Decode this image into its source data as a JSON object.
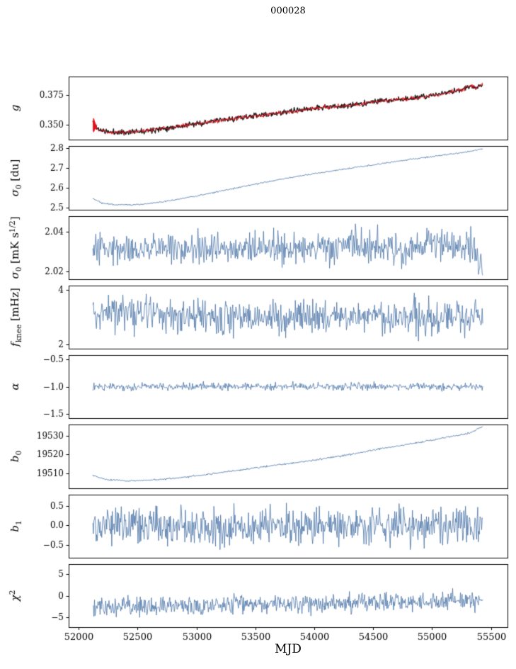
{
  "chart_data": {
    "type": "line",
    "title": "000028",
    "xlabel": "MJD",
    "xlim": [
      51915,
      55640
    ],
    "xticks": [
      {
        "v": 52000,
        "label": "52000"
      },
      {
        "v": 52500,
        "label": "52500"
      },
      {
        "v": 53000,
        "label": "53000"
      },
      {
        "v": 53500,
        "label": "53500"
      },
      {
        "v": 54000,
        "label": "54000"
      },
      {
        "v": 54500,
        "label": "54500"
      },
      {
        "v": 55000,
        "label": "55000"
      },
      {
        "v": 55500,
        "label": "55500"
      }
    ],
    "colors": {
      "line": "#4a74a6",
      "raw": "#1a1a1a",
      "fit": "#e8111a",
      "axis": "#000000"
    },
    "panels": [
      {
        "name": "g",
        "ylim": [
          0.338,
          0.39
        ],
        "yticks": [
          {
            "v": 0.35,
            "label": "0.350"
          },
          {
            "v": 0.375,
            "label": "0.375"
          }
        ],
        "ylabel": [
          {
            "t": "g",
            "it": 1
          }
        ],
        "series": [
          {
            "name": "g-raw",
            "color": "#1a1a1a",
            "lw": 1.4,
            "n": 700,
            "noise": 0.0011,
            "seed": 11,
            "trend": [
              [
                52120,
                0.353
              ],
              [
                52160,
                0.3468
              ],
              [
                52250,
                0.3442
              ],
              [
                52400,
                0.344
              ],
              [
                52600,
                0.3458
              ],
              [
                52850,
                0.349
              ],
              [
                53100,
                0.3525
              ],
              [
                53400,
                0.3565
              ],
              [
                53700,
                0.3598
              ],
              [
                54000,
                0.364
              ],
              [
                54150,
                0.3652
              ],
              [
                54300,
                0.366
              ],
              [
                54500,
                0.3692
              ],
              [
                54700,
                0.371
              ],
              [
                54900,
                0.3728
              ],
              [
                55100,
                0.3762
              ],
              [
                55250,
                0.379
              ],
              [
                55330,
                0.3826
              ],
              [
                55370,
                0.3806
              ],
              [
                55430,
                0.384
              ]
            ]
          },
          {
            "name": "g-fit",
            "color": "#e8111a",
            "lw": 0.9,
            "n": 700,
            "noise": 0.0008,
            "seed": 12,
            "trend": [
              [
                52120,
                0.353
              ],
              [
                52160,
                0.3468
              ],
              [
                52250,
                0.3442
              ],
              [
                52400,
                0.344
              ],
              [
                52600,
                0.3458
              ],
              [
                52850,
                0.349
              ],
              [
                53100,
                0.3525
              ],
              [
                53400,
                0.3565
              ],
              [
                53700,
                0.3598
              ],
              [
                54000,
                0.364
              ],
              [
                54150,
                0.3652
              ],
              [
                54300,
                0.366
              ],
              [
                54500,
                0.3692
              ],
              [
                54700,
                0.371
              ],
              [
                54900,
                0.3728
              ],
              [
                55100,
                0.3762
              ],
              [
                55250,
                0.379
              ],
              [
                55330,
                0.3826
              ],
              [
                55370,
                0.3806
              ],
              [
                55430,
                0.384
              ]
            ]
          },
          {
            "name": "g-start-spike",
            "color": "#e8111a",
            "lw": 0.9,
            "points": [
              [
                52122,
                0.353
              ],
              [
                52124,
                0.3448
              ],
              [
                52126,
                0.3556
              ],
              [
                52128,
                0.3442
              ],
              [
                52130,
                0.3548
              ],
              [
                52132,
                0.345
              ],
              [
                52134,
                0.3536
              ],
              [
                52136,
                0.3462
              ],
              [
                52138,
                0.3524
              ],
              [
                52140,
                0.3468
              ],
              [
                52142,
                0.3512
              ],
              [
                52144,
                0.3465
              ],
              [
                52146,
                0.35
              ],
              [
                52148,
                0.347
              ],
              [
                52150,
                0.3492
              ],
              [
                52152,
                0.3472
              ]
            ]
          }
        ]
      },
      {
        "name": "sigma0-du",
        "ylim": [
          2.488,
          2.812
        ],
        "yticks": [
          {
            "v": 2.5,
            "label": "2.5"
          },
          {
            "v": 2.6,
            "label": "2.6"
          },
          {
            "v": 2.7,
            "label": "2.7"
          },
          {
            "v": 2.8,
            "label": "2.8"
          }
        ],
        "ylabel": [
          {
            "t": "σ",
            "it": 1
          },
          {
            "t": "0",
            "sub": 1
          },
          {
            "t": " [du]"
          }
        ],
        "series": [
          {
            "name": "sigma0-du",
            "color": "#4a74a6",
            "lw": 0.9,
            "n": 600,
            "noise": 0.0018,
            "seed": 21,
            "trend": [
              [
                52120,
                2.545
              ],
              [
                52200,
                2.522
              ],
              [
                52320,
                2.5125
              ],
              [
                52500,
                2.5145
              ],
              [
                52700,
                2.527
              ],
              [
                53000,
                2.558
              ],
              [
                53300,
                2.594
              ],
              [
                53600,
                2.63
              ],
              [
                53900,
                2.662
              ],
              [
                54200,
                2.69
              ],
              [
                54500,
                2.716
              ],
              [
                54800,
                2.743
              ],
              [
                55050,
                2.762
              ],
              [
                55250,
                2.778
              ],
              [
                55430,
                2.797
              ]
            ]
          }
        ]
      },
      {
        "name": "sigma0-mK",
        "ylim": [
          2.016,
          2.048
        ],
        "yticks": [
          {
            "v": 2.02,
            "label": "2.02"
          },
          {
            "v": 2.04,
            "label": "2.04"
          }
        ],
        "ylabel": [
          {
            "t": "σ",
            "it": 1
          },
          {
            "t": "0",
            "sub": 1
          },
          {
            "t": " [mK s"
          },
          {
            "t": "1/2",
            "sup": 1
          },
          {
            "t": "]"
          }
        ],
        "series": [
          {
            "name": "sigma0-mK",
            "color": "#4a74a6",
            "lw": 0.8,
            "n": 650,
            "noise": 0.004,
            "seed": 31,
            "trend": [
              [
                52120,
                2.0295
              ],
              [
                52300,
                2.033
              ],
              [
                52500,
                2.031
              ],
              [
                52700,
                2.0335
              ],
              [
                52900,
                2.03
              ],
              [
                53200,
                2.031
              ],
              [
                53500,
                2.0325
              ],
              [
                53800,
                2.0305
              ],
              [
                54100,
                2.0315
              ],
              [
                54400,
                2.033
              ],
              [
                54700,
                2.032
              ],
              [
                55000,
                2.033
              ],
              [
                55200,
                2.034
              ],
              [
                55350,
                2.032
              ],
              [
                55430,
                2.023
              ]
            ]
          }
        ]
      },
      {
        "name": "fknee",
        "ylim": [
          1.85,
          4.15
        ],
        "yticks": [
          {
            "v": 2,
            "label": "2"
          },
          {
            "v": 4,
            "label": "4"
          }
        ],
        "ylabel": [
          {
            "t": "f",
            "it": 1
          },
          {
            "t": "knee",
            "sub": 1
          },
          {
            "t": " [mHz]"
          }
        ],
        "series": [
          {
            "name": "fknee",
            "color": "#4a74a6",
            "lw": 0.8,
            "n": 650,
            "noise": 0.32,
            "seed": 41,
            "trend": [
              [
                52120,
                3.15
              ],
              [
                52400,
                3.2
              ],
              [
                52700,
                3.05
              ],
              [
                53000,
                3.0
              ],
              [
                53300,
                2.95
              ],
              [
                53700,
                3.0
              ],
              [
                54100,
                3.0
              ],
              [
                54500,
                3.05
              ],
              [
                54900,
                3.0
              ],
              [
                55200,
                3.05
              ],
              [
                55430,
                3.0
              ]
            ]
          }
        ]
      },
      {
        "name": "alpha",
        "ylim": [
          -1.58,
          -0.42
        ],
        "yticks": [
          {
            "v": -1.5,
            "label": "−1.5"
          },
          {
            "v": -1.0,
            "label": "−1.0"
          },
          {
            "v": -0.5,
            "label": "−0.5"
          }
        ],
        "ylabel": [
          {
            "t": "α",
            "it": 1
          }
        ],
        "series": [
          {
            "name": "alpha",
            "color": "#4a74a6",
            "lw": 0.8,
            "n": 650,
            "noise": 0.034,
            "seed": 51,
            "trend": [
              [
                52120,
                -1.0
              ],
              [
                55430,
                -1.0
              ]
            ]
          }
        ]
      },
      {
        "name": "b0",
        "ylim": [
          19502,
          19536
        ],
        "yticks": [
          {
            "v": 19510,
            "label": "19510"
          },
          {
            "v": 19520,
            "label": "19520"
          },
          {
            "v": 19530,
            "label": "19530"
          }
        ],
        "ylabel": [
          {
            "t": "b",
            "it": 1
          },
          {
            "t": "0",
            "sub": 1
          }
        ],
        "series": [
          {
            "name": "b0",
            "color": "#4a74a6",
            "lw": 0.9,
            "n": 600,
            "noise": 0.22,
            "seed": 61,
            "trend": [
              [
                52120,
                19508.8
              ],
              [
                52220,
                19506.8
              ],
              [
                52400,
                19505.9
              ],
              [
                52600,
                19506.3
              ],
              [
                52850,
                19507.5
              ],
              [
                53100,
                19509.5
              ],
              [
                53400,
                19512.0
              ],
              [
                53700,
                19514.5
              ],
              [
                54000,
                19517.0
              ],
              [
                54300,
                19520.0
              ],
              [
                54600,
                19523.5
              ],
              [
                54900,
                19526.5
              ],
              [
                55150,
                19529.5
              ],
              [
                55320,
                19531.5
              ],
              [
                55430,
                19534.8
              ]
            ]
          }
        ]
      },
      {
        "name": "b1",
        "ylim": [
          -0.82,
          0.78
        ],
        "yticks": [
          {
            "v": -0.5,
            "label": "−0.5"
          },
          {
            "v": 0.0,
            "label": "0.0"
          },
          {
            "v": 0.5,
            "label": "0.5"
          }
        ],
        "ylabel": [
          {
            "t": "b",
            "it": 1
          },
          {
            "t": "1",
            "sub": 1
          }
        ],
        "series": [
          {
            "name": "b1",
            "color": "#4a74a6",
            "lw": 0.8,
            "n": 700,
            "noise": 0.23,
            "seed": 71,
            "trend": [
              [
                52120,
                -0.02
              ],
              [
                55430,
                0.0
              ]
            ]
          }
        ]
      },
      {
        "name": "chi2",
        "ylim": [
          -7.2,
          7.2
        ],
        "yticks": [
          {
            "v": -5,
            "label": "−5"
          },
          {
            "v": 0,
            "label": "0"
          },
          {
            "v": 5,
            "label": "5"
          }
        ],
        "ylabel": [
          {
            "t": "χ",
            "it": 1
          },
          {
            "t": "2",
            "sup": 1
          }
        ],
        "series": [
          {
            "name": "chi2",
            "color": "#4a74a6",
            "lw": 0.8,
            "n": 700,
            "noise": 1.05,
            "seed": 81,
            "trend": [
              [
                52120,
                -2.4
              ],
              [
                52700,
                -2.5
              ],
              [
                53200,
                -2.1
              ],
              [
                53700,
                -1.9
              ],
              [
                54200,
                -1.8
              ],
              [
                54700,
                -1.6
              ],
              [
                55100,
                -1.4
              ],
              [
                55430,
                -1.1
              ]
            ]
          }
        ]
      }
    ]
  }
}
